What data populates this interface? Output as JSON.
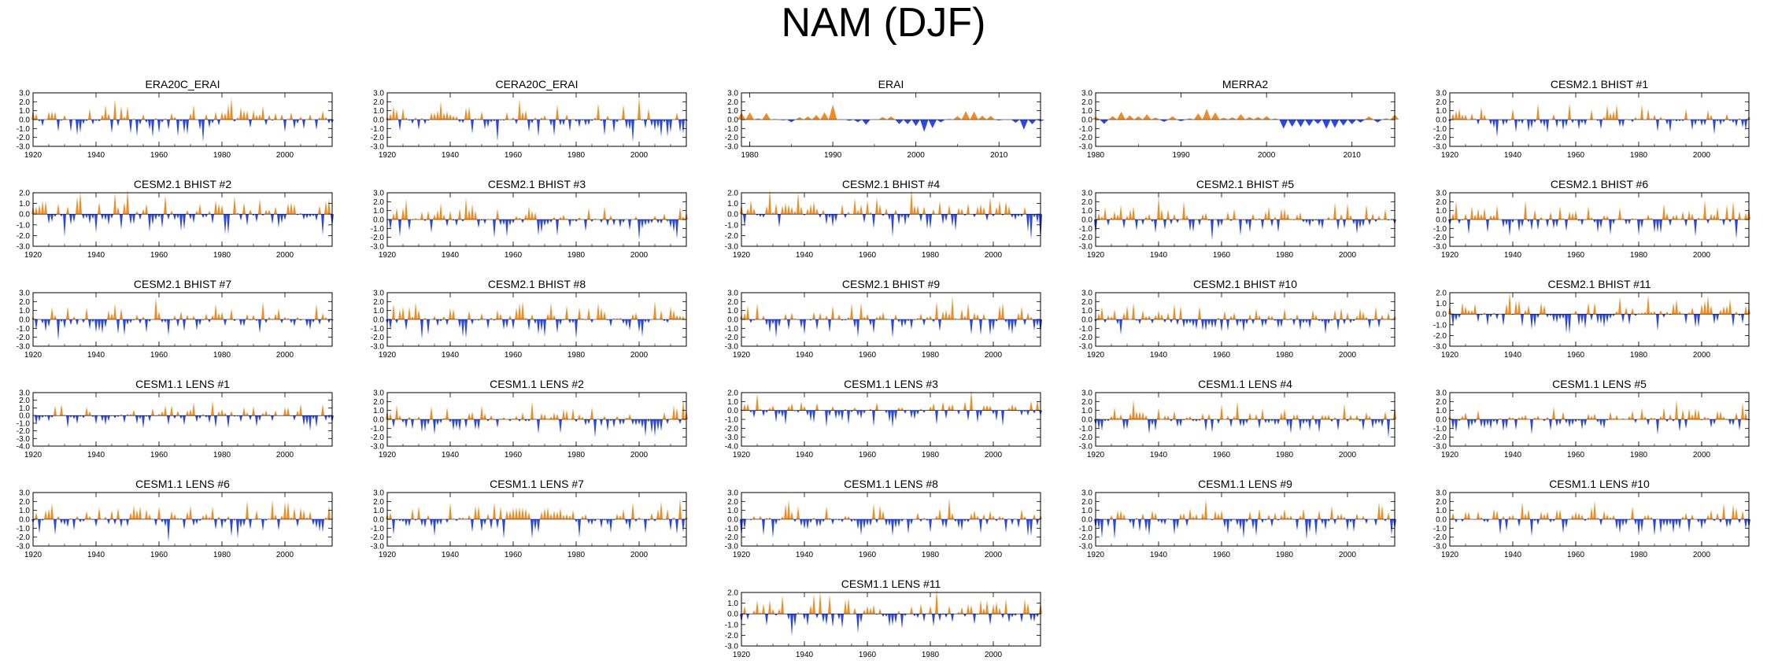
{
  "title": "NAM (DJF)",
  "colors": {
    "positive": "#F58A1F",
    "negative": "#2A45E8",
    "axis": "#000000"
  },
  "chart_data": {
    "type": "area",
    "layout": "panel grid, 5 columns x 6 rows, last row single centered panel",
    "fill_rule": "above zero orange, below zero blue",
    "xlabel": "",
    "ylabel": "",
    "panels": [
      {
        "title": "ERA20C_ERAI",
        "x_range": [
          1920,
          2015
        ],
        "xticks": [
          "1920",
          "1940",
          "1960",
          "1980",
          "2000"
        ],
        "yticks": [
          "3.0",
          "2.0",
          "1.0",
          "0.0",
          "-1.0",
          "-2.0",
          "-3.0"
        ],
        "ylim": [
          -3,
          3
        ]
      },
      {
        "title": "CERA20C_ERAI",
        "x_range": [
          1920,
          2015
        ],
        "xticks": [
          "1920",
          "1940",
          "1960",
          "1980",
          "2000"
        ],
        "yticks": [
          "3.0",
          "2.0",
          "1.0",
          "0.0",
          "-1.0",
          "-2.0",
          "-3.0"
        ],
        "ylim": [
          -3,
          3
        ]
      },
      {
        "title": "ERAI",
        "x_range": [
          1979,
          2015
        ],
        "xticks": [
          "1980",
          "1990",
          "2000",
          "2010"
        ],
        "yticks": [
          "3.0",
          "2.0",
          "1.0",
          "0.0",
          "-1.0",
          "-2.0",
          "-3.0"
        ],
        "ylim": [
          -3,
          3
        ]
      },
      {
        "title": "MERRA2",
        "x_range": [
          1980,
          2015
        ],
        "xticks": [
          "1980",
          "1990",
          "2000",
          "2010"
        ],
        "yticks": [
          "3.0",
          "2.0",
          "1.0",
          "0.0",
          "-1.0",
          "-2.0",
          "-3.0"
        ],
        "ylim": [
          -3,
          3
        ]
      },
      {
        "title": "CESM2.1 BHIST #1",
        "x_range": [
          1920,
          2015
        ],
        "xticks": [
          "1920",
          "1940",
          "1960",
          "1980",
          "2000"
        ],
        "yticks": [
          "3.0",
          "2.0",
          "1.0",
          "0.0",
          "-1.0",
          "-2.0",
          "-3.0"
        ],
        "ylim": [
          -3,
          3
        ]
      },
      {
        "title": "CESM2.1 BHIST #2",
        "x_range": [
          1920,
          2015
        ],
        "xticks": [
          "1920",
          "1940",
          "1960",
          "1980",
          "2000"
        ],
        "yticks": [
          "2.0",
          "1.0",
          "0.0",
          "-1.0",
          "-2.0",
          "-3.0"
        ],
        "ylim": [
          -3,
          2
        ]
      },
      {
        "title": "CESM2.1 BHIST #3",
        "x_range": [
          1920,
          2015
        ],
        "xticks": [
          "1920",
          "1940",
          "1960",
          "1980",
          "2000"
        ],
        "yticks": [
          "3.0",
          "2.0",
          "1.0",
          "0.0",
          "-1.0",
          "-2.0",
          "-3.0"
        ],
        "ylim": [
          -3,
          3
        ]
      },
      {
        "title": "CESM2.1 BHIST #4",
        "x_range": [
          1920,
          2015
        ],
        "xticks": [
          "1920",
          "1940",
          "1960",
          "1980",
          "2000"
        ],
        "yticks": [
          "2.0",
          "1.0",
          "0.0",
          "-1.0",
          "-2.0",
          "-3.0"
        ],
        "ylim": [
          -3,
          2
        ]
      },
      {
        "title": "CESM2.1 BHIST #5",
        "x_range": [
          1920,
          2015
        ],
        "xticks": [
          "1920",
          "1940",
          "1960",
          "1980",
          "2000"
        ],
        "yticks": [
          "3.0",
          "2.0",
          "1.0",
          "0.0",
          "-1.0",
          "-2.0",
          "-3.0"
        ],
        "ylim": [
          -3,
          3
        ]
      },
      {
        "title": "CESM2.1 BHIST #6",
        "x_range": [
          1920,
          2015
        ],
        "xticks": [
          "1920",
          "1940",
          "1960",
          "1980",
          "2000"
        ],
        "yticks": [
          "3.0",
          "2.0",
          "1.0",
          "0.0",
          "-1.0",
          "-2.0",
          "-3.0"
        ],
        "ylim": [
          -3,
          3
        ]
      },
      {
        "title": "CESM2.1 BHIST #7",
        "x_range": [
          1920,
          2015
        ],
        "xticks": [
          "1920",
          "1940",
          "1960",
          "1980",
          "2000"
        ],
        "yticks": [
          "3.0",
          "2.0",
          "1.0",
          "0.0",
          "-1.0",
          "-2.0",
          "-3.0"
        ],
        "ylim": [
          -3,
          3
        ]
      },
      {
        "title": "CESM2.1 BHIST #8",
        "x_range": [
          1920,
          2015
        ],
        "xticks": [
          "1920",
          "1940",
          "1960",
          "1980",
          "2000"
        ],
        "yticks": [
          "3.0",
          "2.0",
          "1.0",
          "0.0",
          "-1.0",
          "-2.0",
          "-3.0"
        ],
        "ylim": [
          -3,
          3
        ]
      },
      {
        "title": "CESM2.1 BHIST #9",
        "x_range": [
          1920,
          2015
        ],
        "xticks": [
          "1920",
          "1940",
          "1960",
          "1980",
          "2000"
        ],
        "yticks": [
          "3.0",
          "2.0",
          "1.0",
          "0.0",
          "-1.0",
          "-2.0",
          "-3.0"
        ],
        "ylim": [
          -3,
          3
        ]
      },
      {
        "title": "CESM2.1 BHIST #10",
        "x_range": [
          1920,
          2015
        ],
        "xticks": [
          "1920",
          "1940",
          "1960",
          "1980",
          "2000"
        ],
        "yticks": [
          "3.0",
          "2.0",
          "1.0",
          "0.0",
          "-1.0",
          "-2.0",
          "-3.0"
        ],
        "ylim": [
          -3,
          3
        ]
      },
      {
        "title": "CESM2.1 BHIST #11",
        "x_range": [
          1920,
          2015
        ],
        "xticks": [
          "1920",
          "1940",
          "1960",
          "1980",
          "2000"
        ],
        "yticks": [
          "2.0",
          "1.0",
          "0.0",
          "-1.0",
          "-2.0",
          "-3.0"
        ],
        "ylim": [
          -3,
          2
        ]
      },
      {
        "title": "CESM1.1 LENS #1",
        "x_range": [
          1920,
          2015
        ],
        "xticks": [
          "1920",
          "1940",
          "1960",
          "1980",
          "2000"
        ],
        "yticks": [
          "3.0",
          "2.0",
          "1.0",
          "0.0",
          "-1.0",
          "-2.0",
          "-3.0",
          "-4.0"
        ],
        "ylim": [
          -4,
          3
        ]
      },
      {
        "title": "CESM1.1 LENS #2",
        "x_range": [
          1920,
          2015
        ],
        "xticks": [
          "1920",
          "1940",
          "1960",
          "1980",
          "2000"
        ],
        "yticks": [
          "3.0",
          "2.0",
          "1.0",
          "0.0",
          "-1.0",
          "-2.0",
          "-3.0"
        ],
        "ylim": [
          -3,
          3
        ]
      },
      {
        "title": "CESM1.1 LENS #3",
        "x_range": [
          1920,
          2015
        ],
        "xticks": [
          "1920",
          "1940",
          "1960",
          "1980",
          "2000"
        ],
        "yticks": [
          "2.0",
          "1.0",
          "0.0",
          "-1.0",
          "-2.0",
          "-3.0",
          "-4.0"
        ],
        "ylim": [
          -4,
          2
        ]
      },
      {
        "title": "CESM1.1 LENS #4",
        "x_range": [
          1920,
          2015
        ],
        "xticks": [
          "1920",
          "1940",
          "1960",
          "1980",
          "2000"
        ],
        "yticks": [
          "3.0",
          "2.0",
          "1.0",
          "0.0",
          "-1.0",
          "-2.0",
          "-3.0"
        ],
        "ylim": [
          -3,
          3
        ]
      },
      {
        "title": "CESM1.1 LENS #5",
        "x_range": [
          1920,
          2015
        ],
        "xticks": [
          "1920",
          "1940",
          "1960",
          "1980",
          "2000"
        ],
        "yticks": [
          "3.0",
          "2.0",
          "1.0",
          "0.0",
          "-1.0",
          "-2.0",
          "-3.0"
        ],
        "ylim": [
          -3,
          3
        ]
      },
      {
        "title": "CESM1.1 LENS #6",
        "x_range": [
          1920,
          2015
        ],
        "xticks": [
          "1920",
          "1940",
          "1960",
          "1980",
          "2000"
        ],
        "yticks": [
          "3.0",
          "2.0",
          "1.0",
          "0.0",
          "-1.0",
          "-2.0",
          "-3.0"
        ],
        "ylim": [
          -3,
          3
        ]
      },
      {
        "title": "CESM1.1 LENS #7",
        "x_range": [
          1920,
          2015
        ],
        "xticks": [
          "1920",
          "1940",
          "1960",
          "1980",
          "2000"
        ],
        "yticks": [
          "3.0",
          "2.0",
          "1.0",
          "0.0",
          "-1.0",
          "-2.0",
          "-3.0"
        ],
        "ylim": [
          -3,
          3
        ]
      },
      {
        "title": "CESM1.1 LENS #8",
        "x_range": [
          1920,
          2015
        ],
        "xticks": [
          "1920",
          "1940",
          "1960",
          "1980",
          "2000"
        ],
        "yticks": [
          "3.0",
          "2.0",
          "1.0",
          "0.0",
          "-1.0",
          "-2.0",
          "-3.0"
        ],
        "ylim": [
          -3,
          3
        ]
      },
      {
        "title": "CESM1.1 LENS #9",
        "x_range": [
          1920,
          2015
        ],
        "xticks": [
          "1920",
          "1940",
          "1960",
          "1980",
          "2000"
        ],
        "yticks": [
          "3.0",
          "2.0",
          "1.0",
          "0.0",
          "-1.0",
          "-2.0",
          "-3.0"
        ],
        "ylim": [
          -3,
          3
        ]
      },
      {
        "title": "CESM1.1 LENS #10",
        "x_range": [
          1920,
          2015
        ],
        "xticks": [
          "1920",
          "1940",
          "1960",
          "1980",
          "2000"
        ],
        "yticks": [
          "3.0",
          "2.0",
          "1.0",
          "0.0",
          "-1.0",
          "-2.0",
          "-3.0"
        ],
        "ylim": [
          -3,
          3
        ]
      },
      {
        "title": "CESM1.1 LENS #11",
        "x_range": [
          1920,
          2015
        ],
        "xticks": [
          "1920",
          "1940",
          "1960",
          "1980",
          "2000"
        ],
        "yticks": [
          "2.0",
          "1.0",
          "0.0",
          "-1.0",
          "-2.0",
          "-3.0"
        ],
        "ylim": [
          -3,
          2
        ]
      }
    ],
    "series_note": "Each panel shows a DJF NAM index time series; bars/areas above 0 are orange, below 0 are blue."
  }
}
